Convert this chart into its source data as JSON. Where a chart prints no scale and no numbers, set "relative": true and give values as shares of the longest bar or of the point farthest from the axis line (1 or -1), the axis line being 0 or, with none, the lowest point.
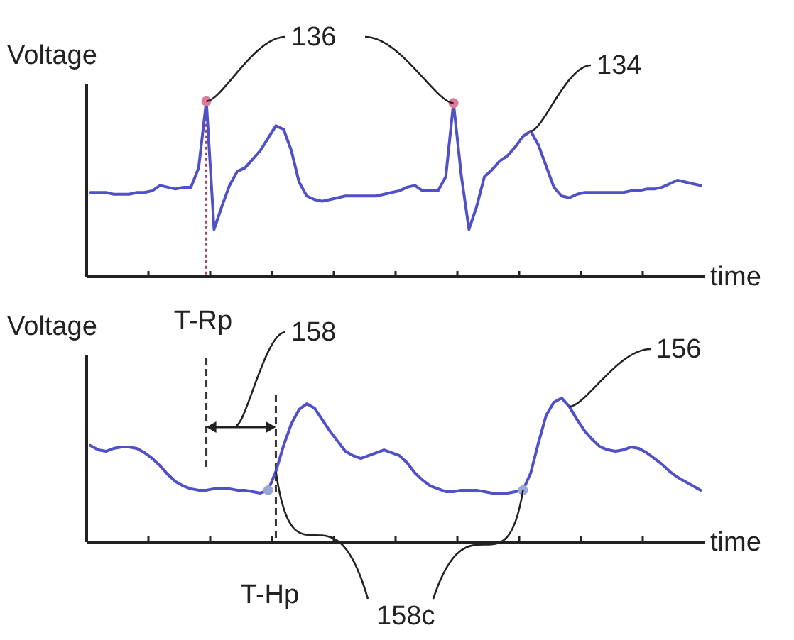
{
  "chart_data": [
    {
      "type": "line",
      "ylabel": "Voltage",
      "xlabel": "time",
      "relative": true,
      "categories": [
        null,
        null,
        null,
        null,
        null,
        null,
        null,
        null,
        null,
        null,
        null,
        null,
        null,
        null,
        null,
        null,
        null,
        null,
        null,
        null,
        null,
        null,
        null,
        null,
        null,
        null,
        null,
        null,
        null,
        null,
        null,
        null,
        null,
        null,
        null,
        null,
        null,
        null,
        null,
        null,
        null,
        null,
        null,
        null,
        null,
        null,
        null,
        null,
        null,
        null,
        null,
        null,
        null,
        null,
        null,
        null,
        null,
        null,
        null,
        null,
        null,
        null,
        null,
        null,
        null,
        null,
        null,
        null,
        null,
        null,
        null,
        null,
        null,
        null,
        null,
        null,
        null,
        null,
        null,
        null
      ],
      "series": [
        {
          "color": "#5050c8",
          "values": [
            0.48,
            0.48,
            0.48,
            0.47,
            0.47,
            0.47,
            0.48,
            0.48,
            0.49,
            0.52,
            0.51,
            0.5,
            0.51,
            0.51,
            0.62,
            1.0,
            0.27,
            0.4,
            0.52,
            0.6,
            0.62,
            0.67,
            0.72,
            0.79,
            0.86,
            0.84,
            0.72,
            0.54,
            0.46,
            0.44,
            0.43,
            0.44,
            0.45,
            0.46,
            0.46,
            0.46,
            0.46,
            0.46,
            0.47,
            0.48,
            0.49,
            0.51,
            0.52,
            0.49,
            0.49,
            0.49,
            0.57,
            0.99,
            0.58,
            0.27,
            0.4,
            0.57,
            0.61,
            0.66,
            0.69,
            0.74,
            0.8,
            0.83,
            0.75,
            0.63,
            0.51,
            0.46,
            0.45,
            0.47,
            0.48,
            0.48,
            0.48,
            0.48,
            0.48,
            0.48,
            0.49,
            0.49,
            0.5,
            0.5,
            0.51,
            0.53,
            0.55,
            0.54,
            0.53,
            0.52
          ]
        }
      ],
      "annotations": [
        "136",
        "134"
      ]
    },
    {
      "type": "line",
      "ylabel": "Voltage",
      "xlabel": "time",
      "relative": true,
      "categories": [
        null,
        null,
        null,
        null,
        null,
        null,
        null,
        null,
        null,
        null,
        null,
        null,
        null,
        null,
        null,
        null,
        null,
        null,
        null,
        null,
        null,
        null,
        null,
        null,
        null,
        null,
        null,
        null,
        null,
        null,
        null,
        null,
        null,
        null,
        null,
        null,
        null,
        null,
        null,
        null,
        null,
        null,
        null,
        null,
        null,
        null,
        null,
        null,
        null,
        null,
        null,
        null,
        null,
        null,
        null,
        null,
        null,
        null,
        null,
        null,
        null,
        null,
        null,
        null,
        null,
        null,
        null,
        null,
        null,
        null,
        null,
        null,
        null,
        null,
        null,
        null,
        null,
        null,
        null,
        null
      ],
      "series": [
        {
          "color": "#5050c8",
          "values": [
            0.67,
            0.64,
            0.63,
            0.65,
            0.66,
            0.66,
            0.65,
            0.62,
            0.58,
            0.53,
            0.47,
            0.42,
            0.39,
            0.37,
            0.36,
            0.36,
            0.37,
            0.37,
            0.37,
            0.36,
            0.36,
            0.35,
            0.34,
            0.36,
            0.49,
            0.67,
            0.82,
            0.92,
            0.96,
            0.93,
            0.85,
            0.77,
            0.7,
            0.63,
            0.6,
            0.58,
            0.6,
            0.62,
            0.64,
            0.62,
            0.6,
            0.55,
            0.48,
            0.43,
            0.39,
            0.37,
            0.35,
            0.35,
            0.36,
            0.36,
            0.36,
            0.35,
            0.34,
            0.34,
            0.34,
            0.35,
            0.36,
            0.48,
            0.69,
            0.88,
            0.97,
            1.0,
            0.94,
            0.85,
            0.77,
            0.71,
            0.66,
            0.64,
            0.63,
            0.64,
            0.66,
            0.65,
            0.62,
            0.58,
            0.54,
            0.49,
            0.45,
            0.42,
            0.39,
            0.36
          ]
        }
      ],
      "annotations": [
        "T-Rp",
        "158",
        "156",
        "T-Hp",
        "158c"
      ]
    }
  ]
}
